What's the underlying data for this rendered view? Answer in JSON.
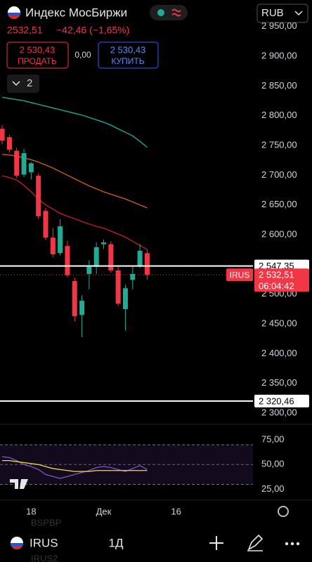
{
  "header": {
    "title": "Индекс МосБиржи",
    "price": "2532,51",
    "change": "−42,46 (−1,65%)",
    "sell_price": "2 530,43",
    "sell_label": "ПРОДАТЬ",
    "spread": "0,00",
    "buy_price": "2 530,43",
    "buy_label": "КУПИТЬ",
    "currency": "RUB",
    "indicators_count": "2"
  },
  "chart_data": [
    {
      "type": "candlestick",
      "up_color": "#22ab94",
      "down_color": "#f23645",
      "open": [
        2778,
        2764,
        2741,
        2701,
        2705,
        2699,
        2640,
        2595,
        2569,
        2581,
        2522,
        2465,
        2534,
        2546,
        2584,
        2584,
        2540,
        2475,
        2524,
        2548,
        2569
      ],
      "high": [
        2784,
        2768,
        2746,
        2744,
        2722,
        2703,
        2645,
        2611,
        2626,
        2590,
        2528,
        2498,
        2557,
        2587,
        2592,
        2589,
        2548,
        2516,
        2546,
        2584,
        2575
      ],
      "low": [
        2752,
        2738,
        2695,
        2697,
        2693,
        2626,
        2591,
        2562,
        2565,
        2528,
        2454,
        2428,
        2508,
        2534,
        2576,
        2536,
        2480,
        2439,
        2508,
        2544,
        2524
      ],
      "close": [
        2758,
        2743,
        2699,
        2737,
        2720,
        2631,
        2595,
        2567,
        2614,
        2532,
        2463,
        2489,
        2546,
        2579,
        2587,
        2540,
        2484,
        2510,
        2534,
        2573,
        2532.51
      ],
      "lines": [
        {
          "color": "#1e9e8f",
          "values": [
            2831,
            2829,
            2827,
            2825,
            2822,
            2819,
            2816,
            2813,
            2810,
            2807,
            2804,
            2801,
            2797,
            2793,
            2789,
            2784,
            2778,
            2772,
            2766,
            2757,
            2747
          ]
        },
        {
          "color": "#c0541e",
          "values": [
            2735,
            2734,
            2732,
            2729,
            2726,
            2722,
            2717,
            2712,
            2706,
            2700,
            2694,
            2688,
            2682,
            2677,
            2672,
            2668,
            2664,
            2660,
            2655,
            2650,
            2645
          ]
        },
        {
          "color": "#b71c1c",
          "values": [
            2699,
            2696,
            2692,
            2683,
            2672,
            2660,
            2650,
            2643,
            2636,
            2631,
            2627,
            2622,
            2618,
            2614,
            2611,
            2606,
            2601,
            2596,
            2589,
            2582,
            2575
          ]
        }
      ],
      "xlim": [
        -0.3,
        34.6
      ],
      "xticks": [
        {
          "value": 4,
          "label": "18"
        },
        {
          "value": 14,
          "label": "Дек"
        },
        {
          "value": 24,
          "label": "16"
        }
      ],
      "ylim": [
        2286,
        2959
      ],
      "yticks": [
        {
          "value": 2950,
          "label": "2 950,00"
        },
        {
          "value": 2900,
          "label": "2 900,00"
        },
        {
          "value": 2850,
          "label": "2 850,00"
        },
        {
          "value": 2800,
          "label": "2 800,00"
        },
        {
          "value": 2750,
          "label": "2 750,00"
        },
        {
          "value": 2700,
          "label": "2 700,00"
        },
        {
          "value": 2650,
          "label": "2 650,00"
        },
        {
          "value": 2600,
          "label": "2 600,00"
        },
        {
          "value": 2550,
          "label": "2 550,00"
        },
        {
          "value": 2500,
          "label": "2 500,00"
        },
        {
          "value": 2450,
          "label": "2 450,00"
        },
        {
          "value": 2400,
          "label": "2 400,00"
        },
        {
          "value": 2350,
          "label": "2 350,00"
        },
        {
          "value": 2300,
          "label": "2 300,00"
        }
      ],
      "price_lines": [
        {
          "value": 2547.35,
          "label": "2 547,35"
        },
        {
          "value": 2320.46,
          "label": "2 320,46"
        }
      ],
      "last": {
        "symbol": "IRUS",
        "value": 2532.51,
        "label": "2 532,51",
        "timer": "06:04:42",
        "color": "#f23645"
      }
    },
    {
      "type": "line",
      "series": [
        {
          "color": "#7e57c2",
          "values": [
            58,
            57,
            54,
            50,
            48,
            45,
            40,
            38,
            36,
            38,
            40,
            42,
            44,
            47,
            48,
            47,
            45,
            43,
            46,
            49,
            45
          ]
        },
        {
          "color": "#fdd835",
          "values": [
            54,
            54,
            53,
            52,
            51,
            50,
            48,
            46,
            45,
            44,
            43,
            43,
            43,
            44,
            44,
            44,
            44,
            44,
            44,
            44,
            44
          ]
        }
      ],
      "xlim": [
        -0.3,
        34.6
      ],
      "ylim": [
        14,
        85
      ],
      "band": [
        30,
        70
      ],
      "yticks": [
        {
          "value": 75,
          "label": "75,00"
        },
        {
          "value": 50,
          "label": "50,00"
        },
        {
          "value": 25,
          "label": "25,00"
        }
      ]
    }
  ],
  "toolbar": {
    "symbol": "IRUS",
    "interval": "1Д",
    "ghost_1": "BSPBP",
    "ghost_2": "IRUS2"
  }
}
